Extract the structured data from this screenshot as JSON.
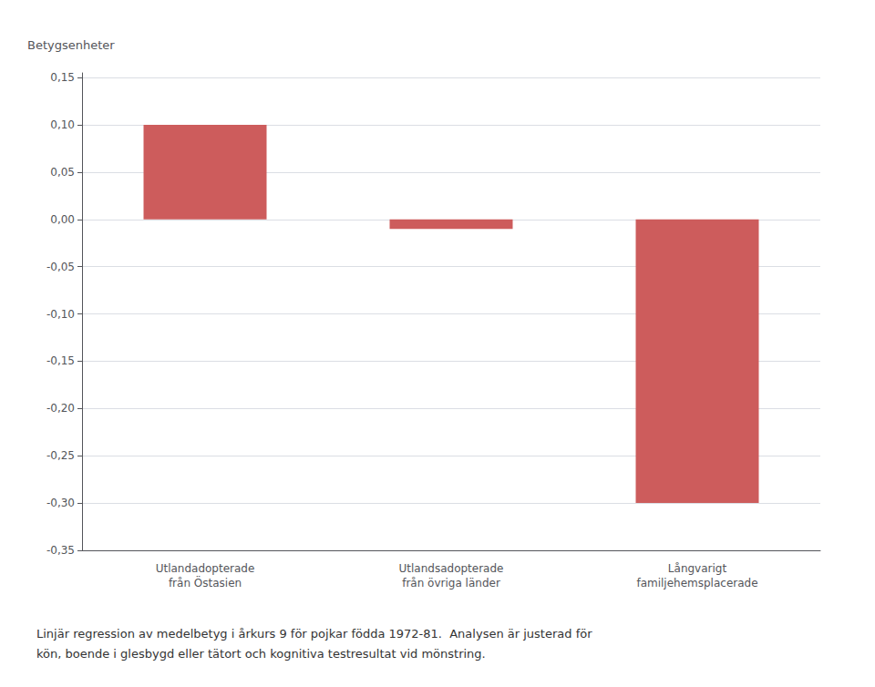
{
  "chart_data": {
    "type": "bar",
    "categories": [
      "Utlandadopterade\nfrån Östasien",
      "Utlandsadopterade\nfrån övriga länder",
      "Långvarigt\nfamiljehemsplacerade"
    ],
    "values": [
      0.1,
      -0.01,
      -0.3
    ],
    "color": "#CD5C5C",
    "ylabel": "Betygsenheter",
    "ylim": [
      -0.35,
      0.155
    ],
    "yticks": [
      {
        "value": -0.35,
        "label": "-0,35"
      },
      {
        "value": -0.3,
        "label": "-0,30"
      },
      {
        "value": -0.25,
        "label": "-0,25"
      },
      {
        "value": -0.2,
        "label": "-0,20"
      },
      {
        "value": -0.15,
        "label": "-0,15"
      },
      {
        "value": -0.1,
        "label": "-0,10"
      },
      {
        "value": -0.05,
        "label": "-0,05"
      },
      {
        "value": 0.0,
        "label": "0,00"
      },
      {
        "value": 0.05,
        "label": "0,05"
      },
      {
        "value": 0.1,
        "label": "0,10"
      },
      {
        "value": 0.15,
        "label": "0,15"
      }
    ],
    "grid": true,
    "annotations": [
      "Linjär regression av medelbetyg i årkurs 9 för pojkar födda 1972-81.  Analysen är justerad för",
      "kön, boende i glesbygd eller tätort och kognitiva testresultat vid mönstring."
    ]
  }
}
